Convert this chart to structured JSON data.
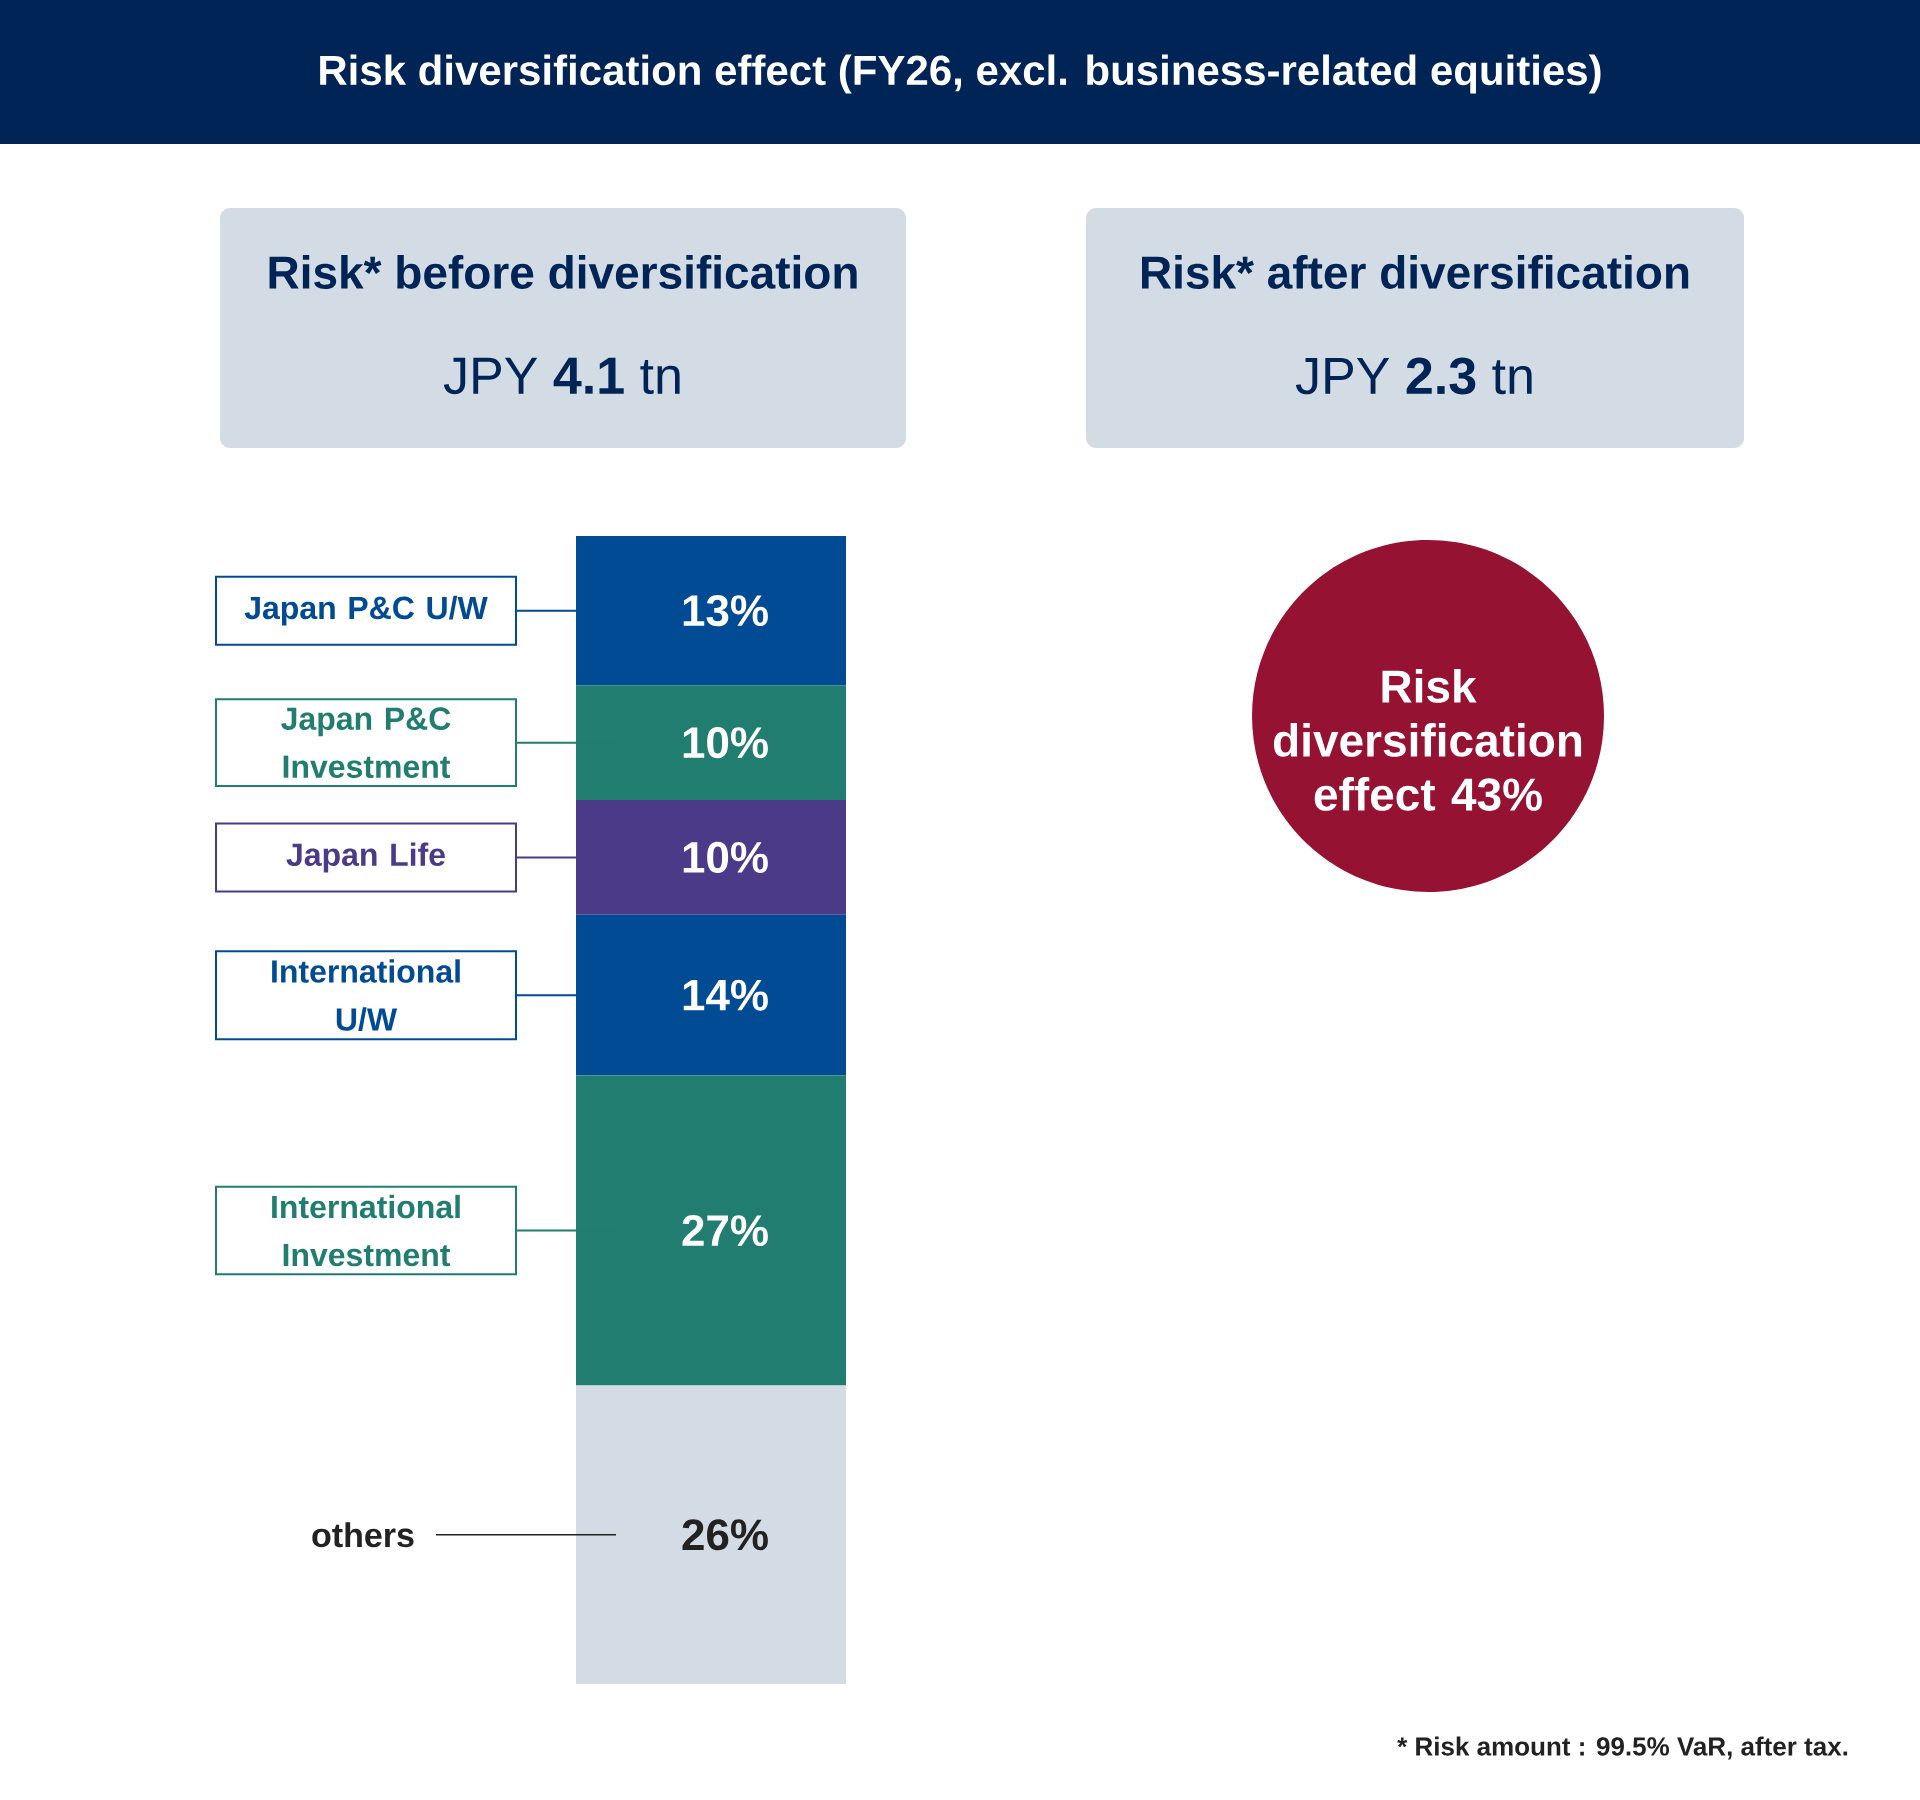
{
  "chart_data": {
    "type": "bar",
    "stacked": true,
    "title": "Risk diversification effect (FY26, excl. business-related equities)",
    "categories": [
      null
    ],
    "legend": "left",
    "series": [
      {
        "name": "others",
        "color": "#d3dce5",
        "values": [
          26
        ],
        "value_labels": [
          "26%"
        ]
      },
      {
        "name": "International Investment",
        "color": "#217d6f",
        "values": [
          27
        ],
        "value_labels": [
          "27%"
        ]
      },
      {
        "name": "International U/W",
        "color": "#004b93",
        "values": [
          14
        ],
        "value_labels": [
          "14%"
        ]
      },
      {
        "name": "Japan Life",
        "color": "#4a3a87",
        "values": [
          10
        ],
        "value_labels": [
          "10%"
        ]
      },
      {
        "name": "Japan P&C Investment",
        "color": "#217d6f",
        "values": [
          10
        ],
        "value_labels": [
          "10%"
        ]
      },
      {
        "name": "Japan P&C U/W",
        "color": "#004b93",
        "values": [
          13
        ],
        "value_labels": [
          "13%"
        ]
      }
    ],
    "annotations": [
      "Risk* before diversification",
      "JPY **4.1** tn",
      "Risk* after diversification",
      "JPY **2.3** tn",
      "Risk diversification effect **43%**",
      "* Risk amount : 99.5% VaR, after tax."
    ]
  }
}
